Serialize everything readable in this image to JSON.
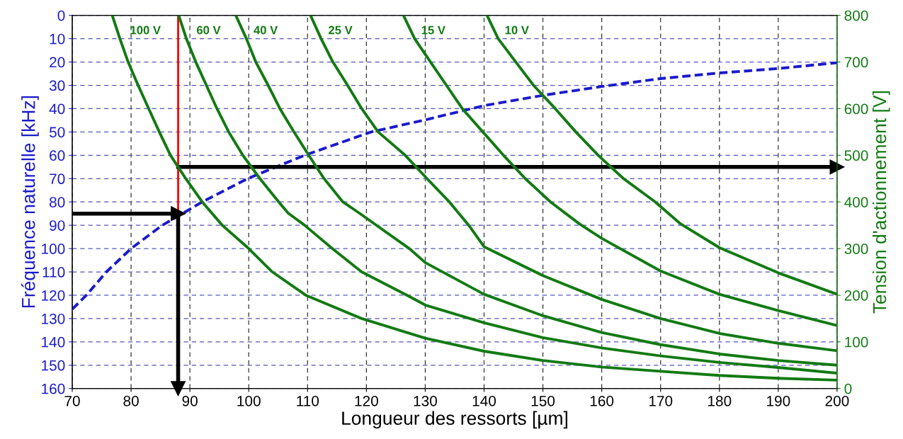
{
  "chart_data": {
    "type": "line",
    "xlabel": "Longueur des ressorts [µm]",
    "ylabel": "Fréquence naturelle [kHz]",
    "y2label": "Tension d'actionnement [V]",
    "xlim": [
      70,
      200
    ],
    "xticks": [
      70,
      80,
      90,
      100,
      110,
      120,
      130,
      140,
      150,
      160,
      170,
      180,
      190,
      200
    ],
    "ylim": [
      160,
      0
    ],
    "yticks": [
      0,
      10,
      20,
      30,
      40,
      50,
      60,
      70,
      80,
      90,
      100,
      110,
      120,
      130,
      140,
      150,
      160
    ],
    "y2lim": [
      0,
      800
    ],
    "y2ticks": [
      0,
      100,
      200,
      300,
      400,
      500,
      600,
      700,
      800
    ],
    "grid": true,
    "legend": false,
    "ref_lines": [
      {
        "axis": "x",
        "value": 88,
        "color": "#ff0000",
        "line_style": "solid"
      }
    ],
    "series": [
      {
        "axis": "y",
        "color": "#1a1acc",
        "line_style": "dashed",
        "x": [
          70,
          72.4,
          75.8,
          80,
          85.3,
          92.1,
          99.8,
          109.5,
          120.8,
          130,
          140,
          150,
          160,
          170,
          180,
          190,
          200
        ],
        "values": [
          126,
          120,
          110,
          100,
          90,
          80,
          70,
          60,
          50,
          44.8,
          38.7,
          34.3,
          30.5,
          27.1,
          24.7,
          22.8,
          20.3
        ]
      },
      {
        "axis": "y2",
        "name": "100 V",
        "color": "#127a12",
        "x": [
          76.8,
          78.1,
          79.5,
          81.2,
          83,
          84.8,
          86.7,
          89.3,
          92.1,
          95.5,
          100,
          104,
          109.7,
          119.2,
          130,
          140,
          150,
          160,
          170,
          180,
          190,
          200
        ],
        "values": [
          800,
          750,
          700,
          650,
          600,
          550,
          500,
          450,
          400,
          350,
          300,
          250,
          200,
          150,
          108,
          80,
          60,
          46,
          37,
          28,
          22,
          18
        ]
      },
      {
        "axis": "y2",
        "name": "60 V",
        "color": "#127a12",
        "x": [
          88.1,
          89.4,
          91,
          92.8,
          94.6,
          96.6,
          99,
          101.9,
          105.1,
          106.7,
          109.5,
          114.2,
          119.2,
          126.9,
          130,
          140,
          150,
          160,
          170,
          180,
          190,
          200
        ],
        "values": [
          800,
          750,
          700,
          650,
          600,
          550,
          500,
          450,
          400,
          376,
          350,
          300,
          250,
          200,
          179,
          141,
          109,
          87,
          70,
          56,
          45,
          33
        ]
      },
      {
        "axis": "y2",
        "name": "40 V",
        "color": "#127a12",
        "x": [
          97.8,
          99.6,
          101.2,
          103.3,
          105.3,
          107.7,
          110.2,
          112.8,
          116,
          118.8,
          127.3,
          130,
          140,
          150,
          160,
          170,
          180,
          190,
          200
        ],
        "values": [
          800,
          750,
          700,
          650,
          600,
          550,
          500,
          450,
          400,
          376,
          300,
          270,
          202,
          156,
          120,
          94,
          74,
          60,
          50
        ]
      },
      {
        "axis": "y2",
        "name": "25 V",
        "color": "#127a12",
        "x": [
          110.5,
          112.3,
          114.3,
          116.8,
          119.2,
          122,
          126.6,
          130.3,
          134.1,
          137.4,
          140,
          150,
          160,
          170,
          180,
          190,
          200
        ],
        "values": [
          800,
          750,
          700,
          650,
          600,
          550,
          500,
          450,
          400,
          350,
          304,
          242,
          191,
          150,
          118,
          97,
          81
        ]
      },
      {
        "axis": "y2",
        "name": "15 V",
        "color": "#127a12",
        "x": [
          126.3,
          128.2,
          130.9,
          133.6,
          136.3,
          139.8,
          143.3,
          147,
          151.3,
          156.2,
          160,
          170,
          180,
          190,
          200
        ],
        "values": [
          800,
          750,
          700,
          650,
          600,
          550,
          500,
          450,
          400,
          353,
          322,
          252,
          202,
          167,
          135
        ]
      },
      {
        "axis": "y2",
        "name": "10 V",
        "color": "#127a12",
        "x": [
          140.5,
          142.4,
          145.4,
          148.4,
          152.1,
          155.6,
          159.4,
          163.7,
          169.1,
          173.4,
          180,
          190,
          200
        ],
        "values": [
          800,
          750,
          700,
          650,
          600,
          550,
          500,
          450,
          400,
          353,
          302,
          248,
          202
        ]
      },
      {
        "axis": "y",
        "color": "#000000",
        "marker": "triangle",
        "x": [
          70,
          88
        ],
        "values": [
          85,
          85
        ]
      },
      {
        "axis": "y",
        "color": "#000000",
        "marker": "triangle",
        "x": [
          88,
          88
        ],
        "values": [
          85,
          160
        ]
      },
      {
        "axis": "y",
        "color": "#000000",
        "marker": "triangle",
        "x": [
          88,
          200
        ],
        "values": [
          65,
          65
        ]
      }
    ]
  }
}
